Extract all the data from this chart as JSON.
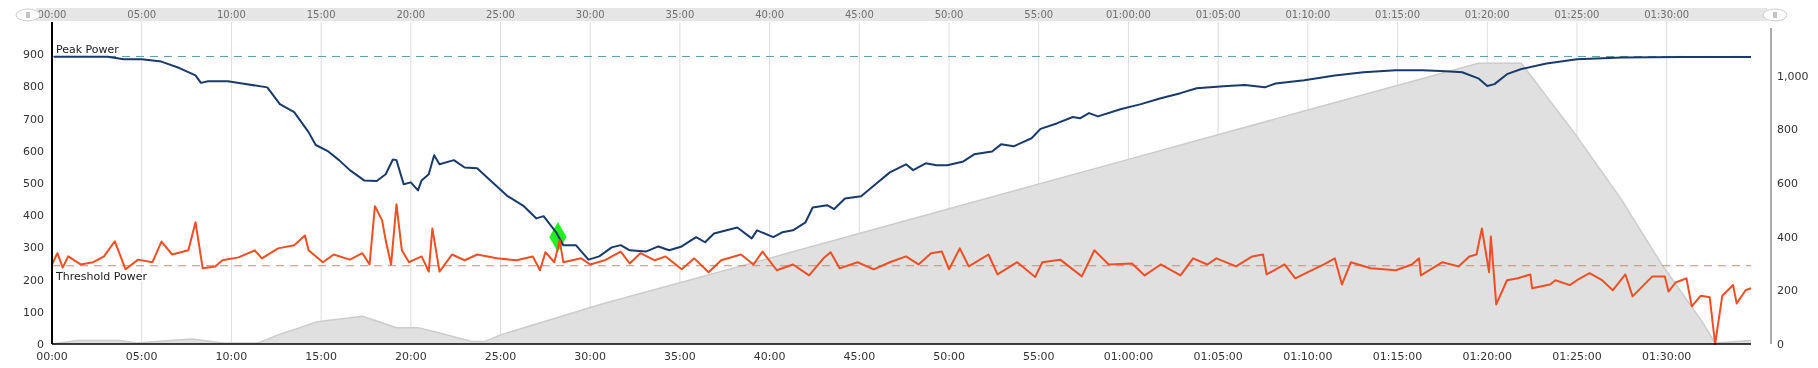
{
  "chart_data": {
    "type": "line",
    "xlim": [
      0,
      94.7
    ],
    "ylim": [
      0,
      1000
    ],
    "y2lim": [
      0,
      1200
    ],
    "xticks": [
      {
        "value": 0,
        "label": "00:00"
      },
      {
        "value": 5,
        "label": "05:00"
      },
      {
        "value": 10,
        "label": "10:00"
      },
      {
        "value": 15,
        "label": "15:00"
      },
      {
        "value": 20,
        "label": "20:00"
      },
      {
        "value": 25,
        "label": "25:00"
      },
      {
        "value": 30,
        "label": "30:00"
      },
      {
        "value": 35,
        "label": "35:00"
      },
      {
        "value": 40,
        "label": "40:00"
      },
      {
        "value": 45,
        "label": "45:00"
      },
      {
        "value": 50,
        "label": "50:00"
      },
      {
        "value": 55,
        "label": "55:00"
      },
      {
        "value": 60,
        "label": "01:00:00"
      },
      {
        "value": 65,
        "label": "01:05:00"
      },
      {
        "value": 70,
        "label": "01:10:00"
      },
      {
        "value": 75,
        "label": "01:15:00"
      },
      {
        "value": 80,
        "label": "01:20:00"
      },
      {
        "value": 85,
        "label": "01:25:00"
      },
      {
        "value": 90,
        "label": "01:30:00"
      }
    ],
    "x2lim": [
      0,
      94.7
    ],
    "x2ticks": [
      {
        "value": 0,
        "label": "00:00"
      },
      {
        "value": 5,
        "label": "05:00"
      },
      {
        "value": 10,
        "label": "10:00"
      },
      {
        "value": 15,
        "label": "15:00"
      },
      {
        "value": 20,
        "label": "20:00"
      },
      {
        "value": 25,
        "label": "25:00"
      },
      {
        "value": 30,
        "label": "30:00"
      },
      {
        "value": 35,
        "label": "35:00"
      },
      {
        "value": 40,
        "label": "40:00"
      },
      {
        "value": 45,
        "label": "45:00"
      },
      {
        "value": 50,
        "label": "50:00"
      },
      {
        "value": 55,
        "label": "55:00"
      },
      {
        "value": 60,
        "label": "01:00:00"
      },
      {
        "value": 65,
        "label": "01:05:00"
      },
      {
        "value": 70,
        "label": "01:10:00"
      },
      {
        "value": 75,
        "label": "01:15:00"
      },
      {
        "value": 80,
        "label": "01:20:00"
      },
      {
        "value": 85,
        "label": "01:25:00"
      },
      {
        "value": 90,
        "label": "01:30:00"
      }
    ],
    "yticks": [
      0,
      100,
      200,
      300,
      400,
      500,
      600,
      700,
      800,
      900
    ],
    "y2ticks": [
      0,
      200,
      400,
      600,
      800,
      {
        "value": 1000,
        "label": "1,000"
      }
    ],
    "grid": "x",
    "ref_lines": [
      {
        "axis": "y",
        "value": 893,
        "label": "Peak Power",
        "color": "#5b9aa9",
        "line_style": "dashed"
      },
      {
        "axis": "y",
        "value": 243,
        "label": "Threshold Power",
        "color": "#c9877f",
        "line_style": "dashed"
      }
    ],
    "series": [
      {
        "type": "area",
        "axis": "y2",
        "color": "#e0e0e0",
        "x": [
          0,
          1.4,
          3.8,
          4.7,
          7.8,
          9.5,
          11.5,
          12.6,
          14.8,
          17.3,
          18.4,
          19.2,
          20.4,
          21.5,
          23.4,
          24.1,
          25.0,
          30.7,
          40,
          50,
          60,
          70,
          79.5,
          81.9,
          84.9,
          87.5,
          89.7,
          91.9,
          92.7,
          94.7
        ],
        "values": [
          0,
          13,
          13,
          4,
          19,
          4,
          4,
          34,
          83,
          103,
          79,
          61,
          61,
          43,
          9,
          9,
          34,
          150,
          320,
          504,
          688,
          872,
          1046,
          1046,
          782,
          536,
          299,
          91,
          4,
          13
        ]
      },
      {
        "type": "line",
        "color": "#1a3a6b",
        "x": [
          0.1,
          3.1,
          4.0,
          5.0,
          6.1,
          7.1,
          8.0,
          8.3,
          8.7,
          9.8,
          10.6,
          12.0,
          12.7,
          13.5,
          14.3,
          14.7,
          15.4,
          16.0,
          16.6,
          17.4,
          18.1,
          18.6,
          19.0,
          19.2,
          19.6,
          20.0,
          20.4,
          20.6,
          21.0,
          21.3,
          21.6,
          22.4,
          23.0,
          23.7,
          24.3,
          25.4,
          26.3,
          27.0,
          27.4,
          28.1,
          28.5,
          29.2,
          29.9,
          30.5,
          31.2,
          31.7,
          32.2,
          33.1,
          33.8,
          34.4,
          35.1,
          35.9,
          36.4,
          36.9,
          38.2,
          39.0,
          39.3,
          40.2,
          40.7,
          41.3,
          42.0,
          42.4,
          43.2,
          43.6,
          44.2,
          45.1,
          45.9,
          46.7,
          47.6,
          48.0,
          48.7,
          49.3,
          49.9,
          50.8,
          51.4,
          52.4,
          52.9,
          53.6,
          54.6,
          55.1,
          56.0,
          56.9,
          57.3,
          57.8,
          58.3,
          59.6,
          60.7,
          61.8,
          62.9,
          63.8,
          65.5,
          66.5,
          67.6,
          68.2,
          69.8,
          71.5,
          73.1,
          74.9,
          76.4,
          77.7,
          78.6,
          79.5,
          80.0,
          80.4,
          81.1,
          81.9,
          83.3,
          85.0,
          87.5,
          90.8,
          94.7
        ],
        "values": [
          892,
          892,
          884,
          884,
          877,
          857,
          834,
          811,
          816,
          816,
          809,
          797,
          745,
          720,
          658,
          618,
          598,
          571,
          540,
          508,
          506,
          527,
          573,
          571,
          496,
          502,
          477,
          508,
          527,
          586,
          558,
          571,
          548,
          546,
          515,
          459,
          428,
          390,
          397,
          347,
          307,
          307,
          262,
          272,
          300,
          307,
          291,
          287,
          303,
          291,
          303,
          332,
          316,
          343,
          362,
          328,
          353,
          332,
          347,
          353,
          378,
          424,
          431,
          419,
          452,
          459,
          496,
          533,
          558,
          540,
          561,
          555,
          555,
          567,
          589,
          598,
          620,
          614,
          639,
          668,
          685,
          705,
          701,
          717,
          707,
          730,
          745,
          763,
          779,
          794,
          801,
          804,
          797,
          809,
          819,
          834,
          844,
          850,
          850,
          847,
          844,
          825,
          801,
          807,
          838,
          854,
          871,
          884,
          890,
          891,
          891
        ]
      },
      {
        "type": "line",
        "color": "#f04e23",
        "x": [
          0.0,
          0.3,
          0.6,
          0.9,
          1.6,
          2.3,
          2.9,
          3.5,
          4.1,
          4.8,
          5.6,
          6.1,
          6.7,
          7.6,
          8.0,
          8.4,
          9.1,
          9.5,
          10.4,
          11.3,
          11.7,
          12.6,
          13.5,
          14.1,
          14.3,
          15.1,
          15.7,
          16.6,
          17.3,
          17.7,
          18.0,
          18.4,
          18.6,
          18.9,
          19.2,
          19.5,
          19.9,
          20.6,
          21.0,
          21.2,
          21.6,
          22.3,
          23.0,
          23.7,
          24.8,
          25.9,
          26.8,
          27.2,
          27.5,
          28.0,
          28.3,
          28.5,
          29.5,
          30.0,
          30.8,
          31.7,
          32.2,
          32.8,
          33.6,
          34.2,
          35.1,
          35.8,
          36.6,
          37.3,
          38.4,
          39.1,
          39.6,
          40.4,
          41.3,
          42.2,
          43.0,
          43.4,
          43.9,
          44.9,
          45.8,
          46.7,
          47.6,
          48.3,
          49.0,
          49.6,
          50.0,
          50.6,
          51.1,
          52.2,
          52.7,
          53.8,
          54.8,
          55.2,
          56.2,
          57.4,
          58.1,
          58.9,
          60.2,
          60.9,
          61.8,
          62.9,
          63.6,
          64.4,
          64.9,
          66.0,
          66.9,
          67.5,
          67.7,
          68.7,
          69.3,
          70.0,
          70.9,
          71.5,
          71.9,
          72.4,
          73.5,
          74.9,
          75.8,
          76.2,
          76.3,
          77.5,
          78.4,
          79.0,
          79.4,
          79.7,
          80.1,
          80.2,
          80.5,
          81.1,
          81.7,
          82.4,
          82.5,
          83.5,
          83.8,
          84.6,
          85.0,
          85.7,
          86.4,
          87.0,
          87.7,
          88.1,
          89.2,
          89.9,
          90.1,
          90.5,
          91.1,
          91.4,
          91.9,
          92.4,
          92.7,
          93.1,
          93.7,
          93.9,
          94.4,
          94.7
        ],
        "values": [
          247,
          282,
          237,
          272,
          247,
          254,
          272,
          319,
          232,
          262,
          254,
          318,
          278,
          291,
          378,
          235,
          241,
          260,
          269,
          291,
          266,
          297,
          307,
          337,
          291,
          254,
          278,
          262,
          282,
          247,
          428,
          384,
          322,
          247,
          434,
          291,
          254,
          272,
          225,
          359,
          225,
          278,
          260,
          278,
          266,
          260,
          272,
          229,
          285,
          254,
          322,
          254,
          266,
          247,
          260,
          287,
          250,
          282,
          260,
          272,
          232,
          266,
          223,
          260,
          278,
          247,
          287,
          229,
          247,
          213,
          266,
          285,
          235,
          254,
          232,
          254,
          272,
          247,
          282,
          287,
          232,
          297,
          241,
          278,
          216,
          254,
          208,
          254,
          262,
          210,
          291,
          247,
          250,
          213,
          247,
          213,
          266,
          247,
          266,
          241,
          272,
          278,
          216,
          247,
          204,
          223,
          247,
          266,
          185,
          254,
          235,
          229,
          247,
          266,
          213,
          254,
          241,
          272,
          278,
          359,
          223,
          334,
          123,
          198,
          204,
          216,
          173,
          185,
          198,
          183,
          198,
          220,
          198,
          167,
          216,
          148,
          210,
          210,
          163,
          191,
          204,
          117,
          150,
          145,
          0,
          150,
          183,
          126,
          167,
          173
        ]
      },
      {
        "type": "scatter",
        "color": "#22ee22",
        "marker": "diamond",
        "x": [
          28.2
        ],
        "values": [
          332
        ]
      }
    ]
  }
}
